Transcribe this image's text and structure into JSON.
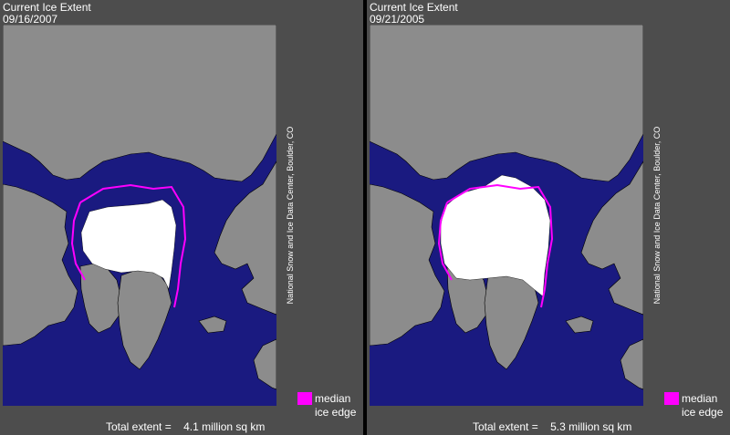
{
  "colors": {
    "background": "#4d4d4d",
    "ocean": "#1a1a80",
    "land": "#8c8c8c",
    "ice": "#ffffff",
    "median_edge": "#ff00ff",
    "text": "#ffffff"
  },
  "panels": [
    {
      "title": "Current Ice Extent",
      "date": "09/16/2007",
      "credit": "National Snow and Ice Data Center, Boulder, CO",
      "legend_label_line1": "median",
      "legend_label_line2": "ice edge",
      "total_label": "Total extent =",
      "total_value": "4.1 million sq km"
    },
    {
      "title": "Current Ice Extent",
      "date": "09/21/2005",
      "credit": "National Snow and Ice Data Center, Boulder, CO",
      "legend_label_line1": "median",
      "legend_label_line2": "ice edge",
      "total_label": "Total extent =",
      "total_value": "5.3 million sq km"
    }
  ]
}
